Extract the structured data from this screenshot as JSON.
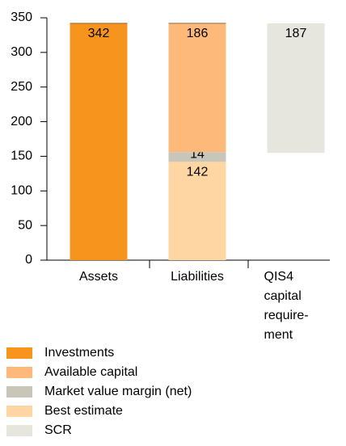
{
  "chart_data": {
    "type": "bar",
    "stacked": true,
    "categories": [
      "Assets",
      "Liabilities",
      "QIS4\ncapital\nrequire-\nment"
    ],
    "series": [
      {
        "name": "Investments",
        "color": "#f7941d",
        "values": [
          342,
          null,
          null
        ]
      },
      {
        "name": "Available capital",
        "color": "#fdb97a",
        "values": [
          null,
          186,
          null
        ]
      },
      {
        "name": "Market value margin (net)",
        "color": "#c8c6b8",
        "values": [
          null,
          14,
          null
        ]
      },
      {
        "name": "Best estimate",
        "color": "#fdd6a3",
        "values": [
          null,
          142,
          null
        ]
      },
      {
        "name": "SCR",
        "color": "#e6e6df",
        "values": [
          null,
          null,
          187
        ]
      }
    ],
    "ylim": [
      0,
      350
    ],
    "yticks": [
      0,
      50,
      100,
      150,
      200,
      250,
      300,
      350
    ],
    "grid": false
  }
}
